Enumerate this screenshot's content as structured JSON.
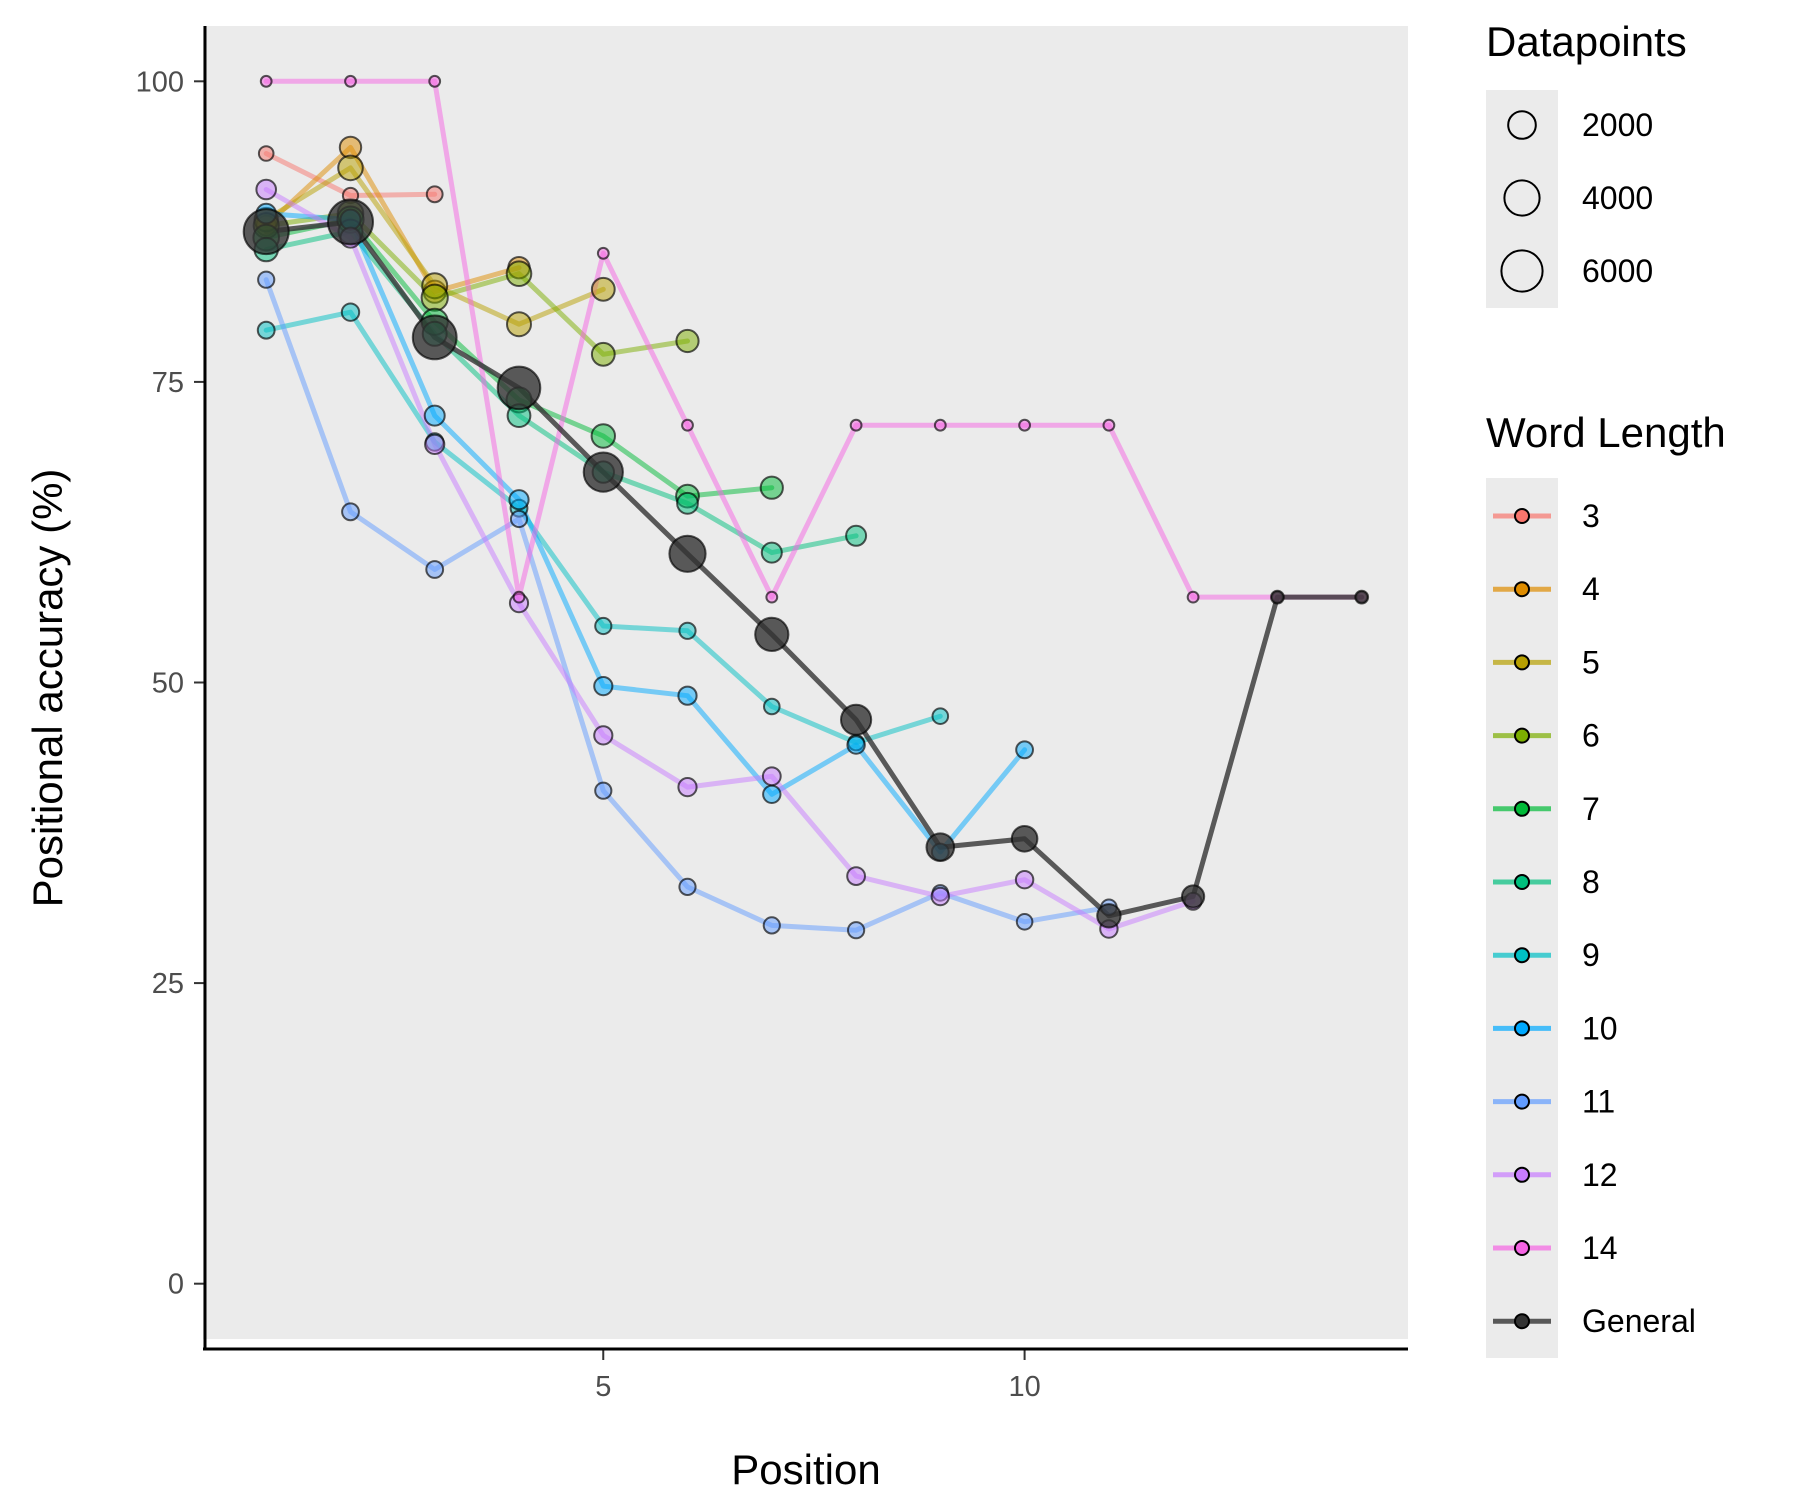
{
  "chart_data": {
    "type": "line",
    "xlabel": "Position",
    "ylabel": "Positional accuracy (%)",
    "xlim": [
      0.25,
      14.55
    ],
    "ylim": [
      -4.6,
      104.6
    ],
    "x_ticks": [
      5,
      10
    ],
    "y_ticks": [
      0,
      25,
      50,
      75,
      100
    ],
    "grid": false,
    "background": "#EBEBEB",
    "size_legend": {
      "title": "Datapoints",
      "entries": [
        {
          "label": "2000",
          "value": 2000
        },
        {
          "label": "4000",
          "value": 4000
        },
        {
          "label": "6000",
          "value": 6000
        }
      ]
    },
    "color_legend": {
      "title": "Word Length",
      "placement": "right"
    },
    "series": [
      {
        "name": "3",
        "color": "#F8766D",
        "points": [
          [
            1,
            94,
            180
          ],
          [
            2,
            90.5,
            220
          ],
          [
            3,
            90.6,
            260
          ]
        ]
      },
      {
        "name": "4",
        "color": "#DE8C00",
        "points": [
          [
            1,
            88,
            700
          ],
          [
            2,
            94.5,
            900
          ],
          [
            3,
            82.5,
            1000
          ],
          [
            4,
            84.5,
            900
          ]
        ]
      },
      {
        "name": "5",
        "color": "#B79F00",
        "points": [
          [
            1,
            88.5,
            1200
          ],
          [
            2,
            92.8,
            1400
          ],
          [
            3,
            83,
            1500
          ],
          [
            4,
            79.8,
            1300
          ],
          [
            5,
            82.7,
            1100
          ]
        ]
      },
      {
        "name": "6",
        "color": "#7CAE00",
        "points": [
          [
            1,
            88,
            1500
          ],
          [
            2,
            89,
            1600
          ],
          [
            3,
            82,
            1700
          ],
          [
            4,
            84,
            1400
          ],
          [
            5,
            77.3,
            1100
          ],
          [
            6,
            78.4,
            1000
          ]
        ]
      },
      {
        "name": "7",
        "color": "#00BA38",
        "points": [
          [
            1,
            87,
            1600
          ],
          [
            2,
            88.5,
            1700
          ],
          [
            3,
            80,
            1700
          ],
          [
            4,
            73.5,
            1500
          ],
          [
            5,
            70.5,
            1200
          ],
          [
            6,
            65.5,
            1100
          ],
          [
            7,
            66.2,
            1000
          ]
        ]
      },
      {
        "name": "8",
        "color": "#00BF7D",
        "points": [
          [
            1,
            86,
            1200
          ],
          [
            2,
            87.5,
            1300
          ],
          [
            3,
            79,
            1300
          ],
          [
            4,
            72.2,
            1100
          ],
          [
            5,
            67.5,
            900
          ],
          [
            6,
            64.9,
            800
          ],
          [
            7,
            60.8,
            700
          ],
          [
            8,
            62.2,
            700
          ]
        ]
      },
      {
        "name": "9",
        "color": "#00BFC4",
        "points": [
          [
            1,
            79.3,
            350
          ],
          [
            2,
            80.8,
            400
          ],
          [
            3,
            70,
            400
          ],
          [
            4,
            64.5,
            350
          ],
          [
            5,
            54.7,
            300
          ],
          [
            6,
            54.3,
            300
          ],
          [
            7,
            48,
            250
          ],
          [
            8,
            45,
            250
          ],
          [
            9,
            47.2,
            250
          ]
        ]
      },
      {
        "name": "10",
        "color": "#00A9FF",
        "points": [
          [
            1,
            89,
            650
          ],
          [
            2,
            88.5,
            700
          ],
          [
            3,
            72.2,
            700
          ],
          [
            4,
            65.2,
            600
          ],
          [
            5,
            49.7,
            500
          ],
          [
            6,
            48.9,
            500
          ],
          [
            7,
            40.7,
            400
          ],
          [
            8,
            44.8,
            400
          ],
          [
            9,
            35.9,
            350
          ],
          [
            10,
            44.4,
            350
          ]
        ]
      },
      {
        "name": "11",
        "color": "#619CFF",
        "points": [
          [
            1,
            83.5,
            300
          ],
          [
            2,
            64.2,
            350
          ],
          [
            3,
            59.4,
            350
          ],
          [
            4,
            63.6,
            300
          ],
          [
            5,
            41,
            300
          ],
          [
            6,
            33,
            300
          ],
          [
            7,
            29.8,
            300
          ],
          [
            8,
            29.4,
            300
          ],
          [
            9,
            32.5,
            250
          ],
          [
            10,
            30.1,
            250
          ],
          [
            11,
            31.3,
            250
          ]
        ]
      },
      {
        "name": "12",
        "color": "#C77CFF",
        "points": [
          [
            1,
            91,
            650
          ],
          [
            2,
            87,
            700
          ],
          [
            3,
            69.8,
            600
          ],
          [
            4,
            56.6,
            500
          ],
          [
            5,
            45.6,
            500
          ],
          [
            6,
            41.3,
            500
          ],
          [
            7,
            42.2,
            450
          ],
          [
            8,
            33.9,
            450
          ],
          [
            9,
            32.2,
            400
          ],
          [
            10,
            33.6,
            400
          ],
          [
            11,
            29.5,
            400
          ],
          [
            12,
            31.8,
            350
          ]
        ]
      },
      {
        "name": "14",
        "color": "#F564E3",
        "points": [
          [
            1,
            100,
            20
          ],
          [
            2,
            100,
            20
          ],
          [
            3,
            100,
            20
          ],
          [
            4,
            57.1,
            20
          ],
          [
            5,
            85.7,
            20
          ],
          [
            6,
            71.4,
            20
          ],
          [
            7,
            57.1,
            20
          ],
          [
            8,
            71.4,
            20
          ],
          [
            9,
            71.4,
            20
          ],
          [
            10,
            71.4,
            20
          ],
          [
            11,
            71.4,
            20
          ],
          [
            12,
            57.1,
            20
          ],
          [
            13,
            57.1,
            20
          ],
          [
            14,
            57.1,
            20
          ]
        ]
      },
      {
        "name": "General",
        "color": "#333333",
        "points": [
          [
            1,
            87.5,
            7500
          ],
          [
            2,
            88.3,
            7500
          ],
          [
            3,
            78.7,
            7000
          ],
          [
            4,
            74.5,
            6500
          ],
          [
            5,
            67.5,
            5300
          ],
          [
            6,
            60.7,
            4300
          ],
          [
            7,
            54,
            3400
          ],
          [
            8,
            46.9,
            2600
          ],
          [
            9,
            36.3,
            2000
          ],
          [
            10,
            37,
            1600
          ],
          [
            11,
            30.6,
            1200
          ],
          [
            12,
            32.2,
            1000
          ],
          [
            13,
            57.1,
            80
          ],
          [
            14,
            57.1,
            80
          ]
        ]
      }
    ]
  }
}
